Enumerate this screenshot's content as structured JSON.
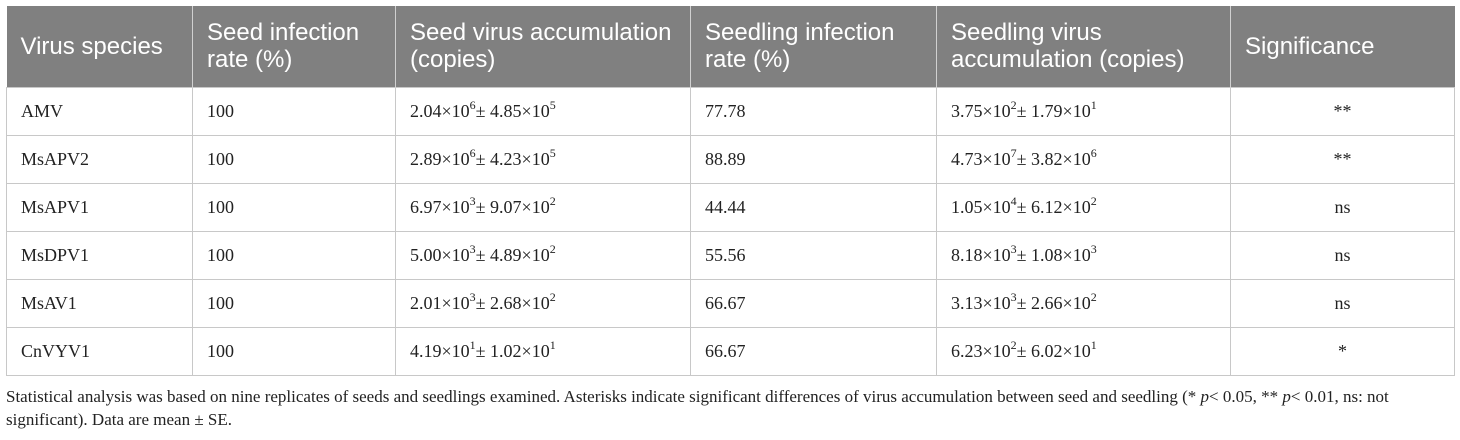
{
  "table": {
    "headers": [
      "Virus species",
      "Seed infection rate (%)",
      "Seed virus accumulation (copies)",
      "Seedling infection rate (%)",
      "Seedling virus accumulation (copies)",
      "Significance"
    ],
    "rows": [
      {
        "species": "AMV",
        "seed_rate": "100",
        "seed_acc": {
          "m": "2.04",
          "me": "6",
          "s": "4.85",
          "se": "5"
        },
        "seedling_rate": "77.78",
        "seedling_acc": {
          "m": "3.75",
          "me": "2",
          "s": "1.79",
          "se": "1"
        },
        "significance": "**"
      },
      {
        "species": "MsAPV2",
        "seed_rate": "100",
        "seed_acc": {
          "m": "2.89",
          "me": "6",
          "s": "4.23",
          "se": "5"
        },
        "seedling_rate": "88.89",
        "seedling_acc": {
          "m": "4.73",
          "me": "7",
          "s": "3.82",
          "se": "6"
        },
        "significance": "**"
      },
      {
        "species": "MsAPV1",
        "seed_rate": "100",
        "seed_acc": {
          "m": "6.97",
          "me": "3",
          "s": "9.07",
          "se": "2"
        },
        "seedling_rate": "44.44",
        "seedling_acc": {
          "m": "1.05",
          "me": "4",
          "s": "6.12",
          "se": "2"
        },
        "significance": "ns"
      },
      {
        "species": "MsDPV1",
        "seed_rate": "100",
        "seed_acc": {
          "m": "5.00",
          "me": "3",
          "s": "4.89",
          "se": "2"
        },
        "seedling_rate": "55.56",
        "seedling_acc": {
          "m": "8.18",
          "me": "3",
          "s": "1.08",
          "se": "3"
        },
        "significance": "ns"
      },
      {
        "species": "MsAV1",
        "seed_rate": "100",
        "seed_acc": {
          "m": "2.01",
          "me": "3",
          "s": "2.68",
          "se": "2"
        },
        "seedling_rate": "66.67",
        "seedling_acc": {
          "m": "3.13",
          "me": "3",
          "s": "2.66",
          "se": "2"
        },
        "significance": "ns"
      },
      {
        "species": "CnVYV1",
        "seed_rate": "100",
        "seed_acc": {
          "m": "4.19",
          "me": "1",
          "s": "1.02",
          "se": "1"
        },
        "seedling_rate": "66.67",
        "seedling_acc": {
          "m": "6.23",
          "me": "2",
          "s": "6.02",
          "se": "1"
        },
        "significance": "*"
      }
    ],
    "base_text": "×10",
    "pm_text": "± "
  },
  "footnote": {
    "part1": "Statistical analysis was based on nine replicates of seeds and seedlings examined. Asterisks indicate significant differences of virus accumulation between seed and seedling (* ",
    "p1": "p",
    "part2": "< 0.05, ** ",
    "p2": "p",
    "part3": "< 0.01, ns: not significant). Data are mean ± SE."
  }
}
